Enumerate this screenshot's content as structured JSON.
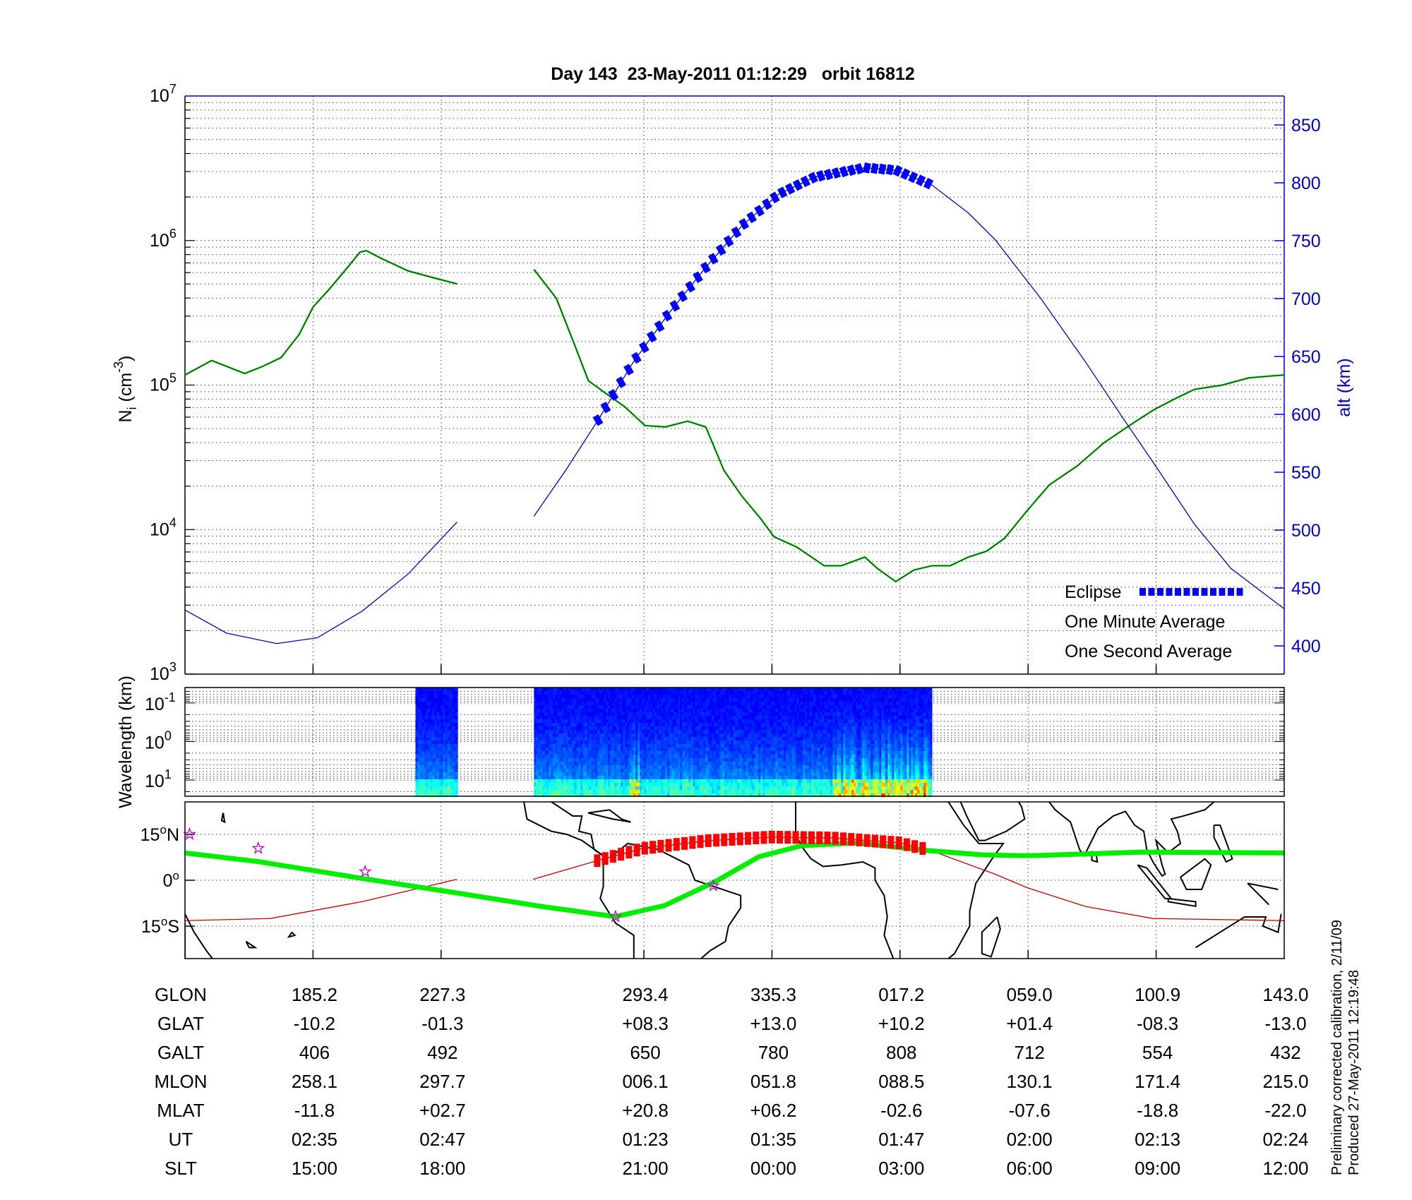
{
  "title": "Day 143  23-May-2011 01:12:29   orbit 16812",
  "footnote": [
    "Preliminary corrected calibration, 2/11/09",
    "Produced 27-May-2011 12:19:48"
  ],
  "colors": {
    "altitude": "#0000cc",
    "eclipse": "#0000ff",
    "one_minute": "#000000",
    "one_second": "#00ee00",
    "track": "#cc0000",
    "track_eclipse": "#ff0000",
    "magnetic_equator": "#00ee00",
    "star": "#cc00cc"
  },
  "chart_data": [
    {
      "type": "line",
      "panel": "density",
      "title": "Day 143  23-May-2011 01:12:29   orbit 16812",
      "xlabel": "",
      "x_unit": "minutes from panel start",
      "xlim": [
        0,
        103
      ],
      "xticks": [
        12,
        24,
        43,
        55,
        67,
        79,
        91
      ],
      "ylabel": {
        "base": "N",
        "sub": "i",
        "unit": " (cm",
        "exp": "-3",
        "close": ")"
      },
      "yscale": "log",
      "ylim_log10": [
        3,
        7
      ],
      "yticks": [
        {
          "base": "10",
          "exp": "3"
        },
        {
          "base": "10",
          "exp": "4"
        },
        {
          "base": "10",
          "exp": "5"
        },
        {
          "base": "10",
          "exp": "6"
        },
        {
          "base": "10",
          "exp": "7"
        }
      ],
      "y2label": "alt (km)",
      "y2lim": [
        376,
        875
      ],
      "y2ticks": [
        "400",
        "450",
        "500",
        "550",
        "600",
        "650",
        "700",
        "750",
        "800",
        "850"
      ],
      "grid": true,
      "legend": {
        "placement": "bottom-right",
        "entries": [
          {
            "label": "Eclipse",
            "color": "#0000ff"
          },
          {
            "label": "One Minute Average",
            "color": "#000000"
          },
          {
            "label": "One Second Average",
            "color": "#00ee00"
          }
        ]
      },
      "series": [
        {
          "name": "Ni (log10 cm^-3)",
          "segments": [
            [
              [
                0,
                5.07
              ],
              [
                2.5,
                5.17
              ],
              [
                5.6,
                5.08
              ],
              [
                7.3,
                5.13
              ],
              [
                9.0,
                5.19
              ],
              [
                10.7,
                5.35
              ],
              [
                12.0,
                5.54
              ],
              [
                13.6,
                5.67
              ],
              [
                15.3,
                5.82
              ],
              [
                16.4,
                5.92
              ],
              [
                17.0,
                5.93
              ],
              [
                18.3,
                5.88
              ],
              [
                20.9,
                5.79
              ],
              [
                23.4,
                5.74
              ],
              [
                25.5,
                5.7
              ]
            ],
            [
              [
                32.7,
                5.8
              ],
              [
                34.8,
                5.6
              ],
              [
                36.5,
                5.28
              ],
              [
                37.8,
                5.03
              ],
              [
                39.1,
                4.96
              ],
              [
                41.2,
                4.85
              ],
              [
                43.1,
                4.72
              ],
              [
                45.0,
                4.71
              ],
              [
                47.1,
                4.75
              ],
              [
                48.8,
                4.71
              ],
              [
                50.5,
                4.41
              ],
              [
                52.2,
                4.23
              ],
              [
                53.9,
                4.08
              ],
              [
                55.2,
                3.95
              ],
              [
                57.3,
                3.88
              ],
              [
                59.9,
                3.75
              ],
              [
                61.5,
                3.75
              ],
              [
                63.7,
                3.81
              ],
              [
                64.9,
                3.73
              ],
              [
                66.6,
                3.64
              ],
              [
                68.3,
                3.72
              ],
              [
                70.0,
                3.75
              ],
              [
                71.7,
                3.75
              ],
              [
                73.4,
                3.81
              ],
              [
                75.1,
                3.85
              ],
              [
                76.8,
                3.94
              ],
              [
                78.9,
                4.13
              ],
              [
                81.0,
                4.31
              ],
              [
                83.6,
                4.44
              ],
              [
                86.1,
                4.6
              ],
              [
                88.7,
                4.73
              ],
              [
                90.8,
                4.83
              ],
              [
                92.9,
                4.91
              ],
              [
                94.6,
                4.97
              ],
              [
                97.2,
                5.0
              ],
              [
                99.7,
                5.05
              ],
              [
                103,
                5.07
              ]
            ]
          ]
        },
        {
          "name": "Altitude (km)",
          "axis": "right",
          "segments": [
            [
              [
                0,
                431
              ],
              [
                3.9,
                411
              ],
              [
                8.6,
                402
              ],
              [
                12.4,
                407
              ],
              [
                16.6,
                430
              ],
              [
                20.9,
                462
              ],
              [
                25.5,
                507
              ]
            ],
            [
              [
                32.7,
                512
              ],
              [
                35.7,
                552
              ],
              [
                38.7,
                595
              ],
              [
                42.0,
                645
              ],
              [
                45.4,
                688
              ],
              [
                48.8,
                727
              ],
              [
                52.2,
                763
              ],
              [
                55.6,
                790
              ],
              [
                59.0,
                805
              ],
              [
                63.7,
                813
              ],
              [
                66.6,
                811
              ],
              [
                70.0,
                798
              ],
              [
                73.4,
                774
              ],
              [
                75.9,
                751
              ],
              [
                80.2,
                700
              ],
              [
                84.4,
                645
              ],
              [
                87.8,
                598
              ],
              [
                91.2,
                552
              ],
              [
                94.6,
                505
              ],
              [
                98.0,
                467
              ],
              [
                103,
                432
              ]
            ]
          ]
        },
        {
          "name": "Eclipse",
          "x_range": [
            38.7,
            70.0
          ]
        }
      ]
    },
    {
      "type": "heatmap",
      "panel": "spectrogram",
      "ylabel": "Wavelength (km)",
      "yscale": "log",
      "yticks": [
        {
          "base": "10",
          "exp": "-1"
        },
        {
          "base": "10",
          "exp": "0"
        },
        {
          "base": "10",
          "exp": "1"
        }
      ],
      "ylim_log10": [
        -1.4,
        1.42
      ],
      "data_blocks_minutes": [
        [
          21.6,
          25.5
        ],
        [
          32.7,
          69.9
        ]
      ],
      "enhanced_activity_minutes": [
        [
          41.5,
          42.5
        ],
        [
          60.5,
          69.5
        ]
      ]
    },
    {
      "type": "map",
      "panel": "ground-track",
      "lon_range_east": [
        143,
        503
      ],
      "lat_range": [
        -25.6,
        25.6
      ],
      "yticks": [
        {
          "lat": 15,
          "label": "15",
          "hemi": "N"
        },
        {
          "lat": 0,
          "label": "0",
          "hemi": ""
        },
        {
          "lat": -15,
          "label": "15",
          "hemi": "S"
        }
      ],
      "magnetic_equator": [
        [
          143,
          8.9
        ],
        [
          167,
          6.1
        ],
        [
          201,
          0.6
        ],
        [
          231,
          -4.0
        ],
        [
          260,
          -8.6
        ],
        [
          284,
          -11.9
        ],
        [
          300,
          -8.3
        ],
        [
          317,
          -0.3
        ],
        [
          331,
          7.7
        ],
        [
          345,
          11.3
        ],
        [
          363,
          12.2
        ],
        [
          385,
          9.8
        ],
        [
          404,
          8.3
        ],
        [
          419,
          8.0
        ],
        [
          438,
          8.6
        ],
        [
          456,
          9.2
        ],
        [
          503,
          8.9
        ]
      ],
      "ground_track": [
        [
          [
            143,
            -13.2
          ],
          [
            171,
            -12.5
          ],
          [
            201,
            -7.0
          ],
          [
            232,
            0.3
          ]
        ],
        [
          [
            257,
            0.3
          ],
          [
            278,
            6.4
          ],
          [
            293,
            10.4
          ],
          [
            314,
            12.9
          ],
          [
            335,
            14.1
          ],
          [
            355,
            13.8
          ],
          [
            377,
            12.2
          ],
          [
            387,
            9.8
          ],
          [
            408,
            2.1
          ],
          [
            419,
            -2.5
          ],
          [
            438,
            -8.6
          ],
          [
            460,
            -12.5
          ],
          [
            503,
            -13.2
          ]
        ]
      ],
      "eclipse_lon_range": [
        278,
        387
      ],
      "stars": [
        [
          144.5,
          15.0
        ],
        [
          167,
          10.4
        ],
        [
          202,
          2.8
        ],
        [
          284,
          -11.9
        ],
        [
          316,
          -1.8
        ]
      ]
    }
  ],
  "table": {
    "column_minutes": [
      12,
      24,
      43,
      55,
      67,
      79,
      91,
      103
    ],
    "rows": [
      {
        "label": "GLON",
        "values": [
          "185.2",
          "227.3",
          "293.4",
          "335.3",
          "017.2",
          "059.0",
          "100.9",
          "143.0"
        ]
      },
      {
        "label": "GLAT",
        "values": [
          "-10.2",
          "-01.3",
          "+08.3",
          "+13.0",
          "+10.2",
          "+01.4",
          "-08.3",
          "-13.0"
        ]
      },
      {
        "label": "GALT",
        "values": [
          "406",
          "492",
          "650",
          "780",
          "808",
          "712",
          "554",
          "432"
        ]
      },
      {
        "label": "MLON",
        "values": [
          "258.1",
          "297.7",
          "006.1",
          "051.8",
          "088.5",
          "130.1",
          "171.4",
          "215.0"
        ]
      },
      {
        "label": "MLAT",
        "values": [
          "-11.8",
          "+02.7",
          "+20.8",
          "+06.2",
          "-02.6",
          "-07.6",
          "-18.8",
          "-22.0"
        ]
      },
      {
        "label": "UT",
        "values": [
          "02:35",
          "02:47",
          "01:23",
          "01:35",
          "01:47",
          "02:00",
          "02:13",
          "02:24"
        ]
      },
      {
        "label": "SLT",
        "values": [
          "15:00",
          "18:00",
          "21:00",
          "00:00",
          "03:00",
          "06:00",
          "09:00",
          "12:00"
        ]
      }
    ]
  }
}
